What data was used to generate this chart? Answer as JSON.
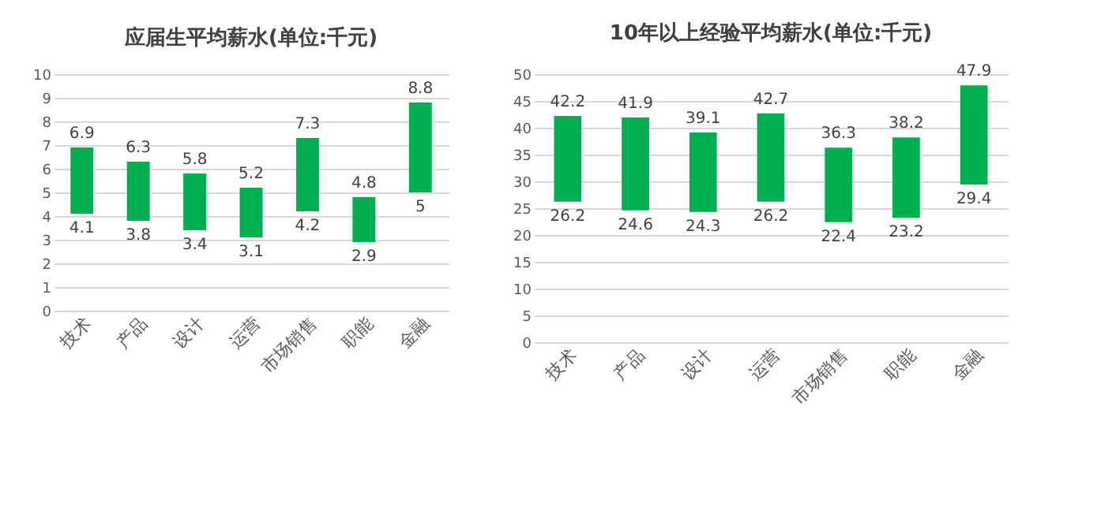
{
  "chart_data": [
    {
      "type": "bar",
      "title": "应届生平均薪水(单位:千元)",
      "categories": [
        "技术",
        "产品",
        "设计",
        "运营",
        "市场销售",
        "职能",
        "金融"
      ],
      "series": [
        {
          "color": "#00b050",
          "values": [
            2.8,
            2.5,
            2.4,
            2.1,
            3.1,
            1.9,
            3.8
          ],
          "base": [
            4.1,
            3.8,
            3.4,
            3.1,
            4.2,
            2.9,
            5
          ]
        }
      ],
      "ylim": [
        0,
        10
      ],
      "yticks": [
        0,
        1,
        2,
        3,
        4,
        5,
        6,
        7,
        8,
        9,
        10
      ],
      "grid": "y",
      "annotations": [
        {
          "text": "6.9",
          "x": "技术",
          "y": 6.9
        },
        {
          "text": "4.1",
          "x": "技术",
          "y": 4.1
        },
        {
          "text": "6.3",
          "x": "产品",
          "y": 6.3
        },
        {
          "text": "3.8",
          "x": "产品",
          "y": 3.8
        },
        {
          "text": "5.8",
          "x": "设计",
          "y": 5.8
        },
        {
          "text": "3.4",
          "x": "设计",
          "y": 3.4
        },
        {
          "text": "5.2",
          "x": "运营",
          "y": 5.2
        },
        {
          "text": "3.1",
          "x": "运营",
          "y": 3.1
        },
        {
          "text": "7.3",
          "x": "市场销售",
          "y": 7.3
        },
        {
          "text": "4.2",
          "x": "市场销售",
          "y": 4.2
        },
        {
          "text": "4.8",
          "x": "职能",
          "y": 4.8
        },
        {
          "text": "2.9",
          "x": "职能",
          "y": 2.9
        },
        {
          "text": "8.8",
          "x": "金融",
          "y": 8.8
        },
        {
          "text": "5",
          "x": "金融",
          "y": 5
        }
      ]
    },
    {
      "type": "bar",
      "title": "10年以上经验平均薪水(单位:千元)",
      "categories": [
        "技术",
        "产品",
        "设计",
        "运营",
        "市场销售",
        "职能",
        "金融"
      ],
      "series": [
        {
          "color": "#00b050",
          "values": [
            16,
            17.3,
            14.8,
            16.5,
            13.9,
            15,
            18.5
          ],
          "base": [
            26.2,
            24.6,
            24.3,
            26.2,
            22.4,
            23.2,
            29.4
          ]
        }
      ],
      "ylim": [
        0,
        50
      ],
      "yticks": [
        0,
        5,
        10,
        15,
        20,
        25,
        30,
        35,
        40,
        45,
        50
      ],
      "grid": "y",
      "annotations": [
        {
          "text": "42.2",
          "x": "技术",
          "y": 42.2
        },
        {
          "text": "26.2",
          "x": "技术",
          "y": 26.2
        },
        {
          "text": "41.9",
          "x": "产品",
          "y": 41.9
        },
        {
          "text": "24.6",
          "x": "产品",
          "y": 24.6
        },
        {
          "text": "39.1",
          "x": "设计",
          "y": 39.1
        },
        {
          "text": "24.3",
          "x": "设计",
          "y": 24.3
        },
        {
          "text": "42.7",
          "x": "运营",
          "y": 42.7
        },
        {
          "text": "26.2",
          "x": "运营",
          "y": 26.2
        },
        {
          "text": "36.3",
          "x": "市场销售",
          "y": 36.3
        },
        {
          "text": "22.4",
          "x": "市场销售",
          "y": 22.4
        },
        {
          "text": "38.2",
          "x": "职能",
          "y": 38.2
        },
        {
          "text": "23.2",
          "x": "职能",
          "y": 23.2
        },
        {
          "text": "47.9",
          "x": "金融",
          "y": 47.9
        },
        {
          "text": "29.4",
          "x": "金融",
          "y": 29.4
        }
      ]
    }
  ]
}
